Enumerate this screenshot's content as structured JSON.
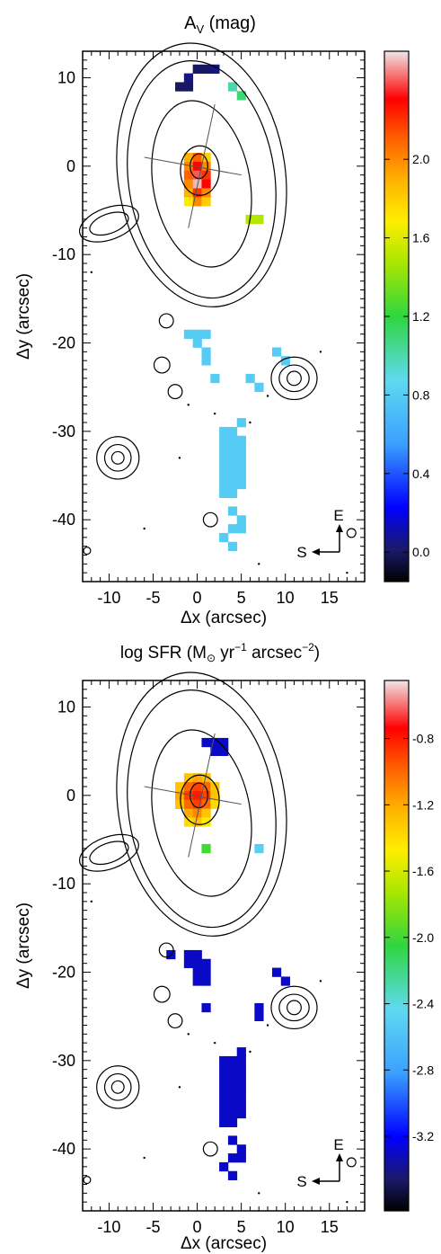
{
  "chart_data": [
    {
      "type": "heatmap",
      "title": "A",
      "title_sub": "V",
      "title_suffix": " (mag)",
      "xlabel": "Δx (arcsec)",
      "ylabel": "Δy (arcsec)",
      "xlim": [
        -13,
        19
      ],
      "ylim": [
        -47,
        13
      ],
      "xticks": [
        -10,
        -5,
        0,
        5,
        10,
        15
      ],
      "yticks": [
        10,
        0,
        -10,
        -20,
        -30,
        -40
      ],
      "colorbar": {
        "range": [
          -0.15,
          2.55
        ],
        "ticks": [
          "2.0",
          "1.6",
          "1.2",
          "0.8",
          "0.4",
          "0.0"
        ],
        "tick_values": [
          2.0,
          1.6,
          1.2,
          0.8,
          0.4,
          0.0
        ]
      },
      "compass": {
        "north_label": "E",
        "west_label": "S"
      },
      "pixels": [
        {
          "x": 0,
          "y": 11,
          "v": 0.0
        },
        {
          "x": 1,
          "y": 11,
          "v": 0.0
        },
        {
          "x": 2,
          "y": 11,
          "v": 0.05
        },
        {
          "x": -1,
          "y": 10,
          "v": 0.05
        },
        {
          "x": -2,
          "y": 9,
          "v": 0.0
        },
        {
          "x": -1,
          "y": 9,
          "v": 0.0
        },
        {
          "x": 4,
          "y": 9,
          "v": 1.0
        },
        {
          "x": 5,
          "y": 8,
          "v": 1.1
        },
        {
          "x": -1,
          "y": 1,
          "v": 1.9
        },
        {
          "x": 0,
          "y": 1,
          "v": 2.1
        },
        {
          "x": 1,
          "y": 1,
          "v": 1.8
        },
        {
          "x": -1,
          "y": 0,
          "v": 2.0
        },
        {
          "x": 0,
          "y": 0,
          "v": 2.3
        },
        {
          "x": 1,
          "y": 0,
          "v": 2.0
        },
        {
          "x": -1,
          "y": -1,
          "v": 2.1
        },
        {
          "x": 0,
          "y": -1,
          "v": 2.4
        },
        {
          "x": 1,
          "y": -1,
          "v": 2.2
        },
        {
          "x": -1,
          "y": -2,
          "v": 2.0
        },
        {
          "x": 0,
          "y": -2,
          "v": 2.5
        },
        {
          "x": 1,
          "y": -2,
          "v": 2.3
        },
        {
          "x": -1,
          "y": -3,
          "v": 1.9
        },
        {
          "x": 0,
          "y": -3,
          "v": 2.2
        },
        {
          "x": 1,
          "y": -3,
          "v": 2.0
        },
        {
          "x": -1,
          "y": -4,
          "v": 1.7
        },
        {
          "x": 0,
          "y": -4,
          "v": 2.0
        },
        {
          "x": 1,
          "y": -4,
          "v": 1.8
        },
        {
          "x": 6,
          "y": -6,
          "v": 1.5
        },
        {
          "x": 7,
          "y": -6,
          "v": 1.5
        },
        {
          "x": -1,
          "y": -19,
          "v": 0.8
        },
        {
          "x": 0,
          "y": -19,
          "v": 0.8
        },
        {
          "x": 1,
          "y": -19,
          "v": 0.8
        },
        {
          "x": 0,
          "y": -20,
          "v": 0.8
        },
        {
          "x": 1,
          "y": -21,
          "v": 0.8
        },
        {
          "x": 1,
          "y": -22,
          "v": 0.8
        },
        {
          "x": 2,
          "y": -24,
          "v": 0.8
        },
        {
          "x": 6,
          "y": -24,
          "v": 0.8
        },
        {
          "x": 7,
          "y": -25,
          "v": 0.8
        },
        {
          "x": 9,
          "y": -21,
          "v": 0.8
        },
        {
          "x": 10,
          "y": -22,
          "v": 0.8
        },
        {
          "x": 3,
          "y": -30,
          "v": 0.8
        },
        {
          "x": 4,
          "y": -30,
          "v": 0.8
        },
        {
          "x": 5,
          "y": -29,
          "v": 0.8
        },
        {
          "x": 3,
          "y": -31,
          "v": 0.8
        },
        {
          "x": 4,
          "y": -31,
          "v": 0.8
        },
        {
          "x": 5,
          "y": -31,
          "v": 0.8
        },
        {
          "x": 3,
          "y": -32,
          "v": 0.8
        },
        {
          "x": 4,
          "y": -32,
          "v": 0.8
        },
        {
          "x": 5,
          "y": -32,
          "v": 0.8
        },
        {
          "x": 3,
          "y": -33,
          "v": 0.8
        },
        {
          "x": 4,
          "y": -33,
          "v": 0.8
        },
        {
          "x": 5,
          "y": -33,
          "v": 0.8
        },
        {
          "x": 3,
          "y": -34,
          "v": 0.8
        },
        {
          "x": 4,
          "y": -34,
          "v": 0.8
        },
        {
          "x": 5,
          "y": -34,
          "v": 0.8
        },
        {
          "x": 3,
          "y": -35,
          "v": 0.8
        },
        {
          "x": 4,
          "y": -35,
          "v": 0.8
        },
        {
          "x": 5,
          "y": -35,
          "v": 0.8
        },
        {
          "x": 3,
          "y": -36,
          "v": 0.8
        },
        {
          "x": 4,
          "y": -36,
          "v": 0.8
        },
        {
          "x": 5,
          "y": -36,
          "v": 0.8
        },
        {
          "x": 3,
          "y": -37,
          "v": 0.8
        },
        {
          "x": 4,
          "y": -37,
          "v": 0.8
        },
        {
          "x": 4,
          "y": -39,
          "v": 0.8
        },
        {
          "x": 5,
          "y": -40,
          "v": 0.8
        },
        {
          "x": 4,
          "y": -41,
          "v": 0.8
        },
        {
          "x": 5,
          "y": -41,
          "v": 0.8
        },
        {
          "x": 3,
          "y": -42,
          "v": 0.8
        },
        {
          "x": 4,
          "y": -43,
          "v": 0.8
        }
      ]
    },
    {
      "type": "heatmap",
      "title": "log SFR (M",
      "title_sym": "⊙",
      "title_mid": " yr",
      "title_sup1": "−1",
      "title_mid2": " arcsec",
      "title_sup2": "−2",
      "title_end": ")",
      "xlabel": "Δx (arcsec)",
      "ylabel": "Δy (arcsec)",
      "xlim": [
        -13,
        19
      ],
      "ylim": [
        -47,
        13
      ],
      "xticks": [
        -10,
        -5,
        0,
        5,
        10,
        15
      ],
      "yticks": [
        10,
        0,
        -10,
        -20,
        -30,
        -40
      ],
      "colorbar": {
        "range": [
          -3.65,
          -0.45
        ],
        "ticks": [
          "-0.8",
          "-1.2",
          "-1.6",
          "-2.0",
          "-2.4",
          "-2.8",
          "-3.2"
        ],
        "tick_values": [
          -0.8,
          -1.2,
          -1.6,
          -2.0,
          -2.4,
          -2.8,
          -3.2
        ]
      },
      "compass": {
        "north_label": "E",
        "west_label": "S"
      },
      "pixels": [
        {
          "x": 1,
          "y": 6,
          "v": -3.3
        },
        {
          "x": 2,
          "y": 6,
          "v": -3.3
        },
        {
          "x": 3,
          "y": 6,
          "v": -3.3
        },
        {
          "x": 2,
          "y": 5,
          "v": -3.3
        },
        {
          "x": 3,
          "y": 5,
          "v": -3.3
        },
        {
          "x": -1,
          "y": 2,
          "v": -1.3
        },
        {
          "x": 0,
          "y": 2,
          "v": -1.2
        },
        {
          "x": 1,
          "y": 2,
          "v": -1.3
        },
        {
          "x": -2,
          "y": 1,
          "v": -1.3
        },
        {
          "x": -1,
          "y": 1,
          "v": -1.0
        },
        {
          "x": 0,
          "y": 1,
          "v": -0.9
        },
        {
          "x": 1,
          "y": 1,
          "v": -1.0
        },
        {
          "x": 2,
          "y": 1,
          "v": -1.3
        },
        {
          "x": -2,
          "y": 0,
          "v": -1.2
        },
        {
          "x": -1,
          "y": 0,
          "v": -0.9
        },
        {
          "x": 0,
          "y": 0,
          "v": -0.8
        },
        {
          "x": 1,
          "y": 0,
          "v": -0.9
        },
        {
          "x": 2,
          "y": 0,
          "v": -1.3
        },
        {
          "x": -2,
          "y": -1,
          "v": -1.3
        },
        {
          "x": -1,
          "y": -1,
          "v": -1.0
        },
        {
          "x": 0,
          "y": -1,
          "v": -0.9
        },
        {
          "x": 1,
          "y": -1,
          "v": -1.0
        },
        {
          "x": 2,
          "y": -1,
          "v": -1.4
        },
        {
          "x": -1,
          "y": -2,
          "v": -1.2
        },
        {
          "x": 0,
          "y": -2,
          "v": -1.1
        },
        {
          "x": 1,
          "y": -2,
          "v": -1.3
        },
        {
          "x": -1,
          "y": -3,
          "v": -1.4
        },
        {
          "x": 0,
          "y": -3,
          "v": -1.3
        },
        {
          "x": 1,
          "y": -3,
          "v": -1.5
        },
        {
          "x": 1,
          "y": -6,
          "v": -2.0
        },
        {
          "x": 7,
          "y": -6,
          "v": -2.5
        },
        {
          "x": -3,
          "y": -18,
          "v": -3.3
        },
        {
          "x": -1,
          "y": -18,
          "v": -3.3
        },
        {
          "x": 0,
          "y": -18,
          "v": -3.3
        },
        {
          "x": -1,
          "y": -19,
          "v": -3.3
        },
        {
          "x": 0,
          "y": -19,
          "v": -3.3
        },
        {
          "x": 1,
          "y": -19,
          "v": -3.3
        },
        {
          "x": 0,
          "y": -20,
          "v": -3.3
        },
        {
          "x": 1,
          "y": -20,
          "v": -3.3
        },
        {
          "x": 0,
          "y": -21,
          "v": -3.3
        },
        {
          "x": 1,
          "y": -21,
          "v": -3.3
        },
        {
          "x": 1,
          "y": -24,
          "v": -3.3
        },
        {
          "x": 7,
          "y": -24,
          "v": -3.3
        },
        {
          "x": 7,
          "y": -25,
          "v": -3.3
        },
        {
          "x": 9,
          "y": -20,
          "v": -3.3
        },
        {
          "x": 10,
          "y": -21,
          "v": -3.3
        },
        {
          "x": 5,
          "y": -29,
          "v": -3.3
        },
        {
          "x": 3,
          "y": -30,
          "v": -3.3
        },
        {
          "x": 4,
          "y": -30,
          "v": -3.3
        },
        {
          "x": 5,
          "y": -30,
          "v": -3.3
        },
        {
          "x": 3,
          "y": -31,
          "v": -3.3
        },
        {
          "x": 4,
          "y": -31,
          "v": -3.3
        },
        {
          "x": 5,
          "y": -31,
          "v": -3.3
        },
        {
          "x": 3,
          "y": -32,
          "v": -3.3
        },
        {
          "x": 4,
          "y": -32,
          "v": -3.3
        },
        {
          "x": 5,
          "y": -32,
          "v": -3.3
        },
        {
          "x": 3,
          "y": -33,
          "v": -3.3
        },
        {
          "x": 4,
          "y": -33,
          "v": -3.3
        },
        {
          "x": 5,
          "y": -33,
          "v": -3.3
        },
        {
          "x": 3,
          "y": -34,
          "v": -3.3
        },
        {
          "x": 4,
          "y": -34,
          "v": -3.3
        },
        {
          "x": 5,
          "y": -34,
          "v": -3.3
        },
        {
          "x": 3,
          "y": -35,
          "v": -3.3
        },
        {
          "x": 4,
          "y": -35,
          "v": -3.3
        },
        {
          "x": 5,
          "y": -35,
          "v": -3.3
        },
        {
          "x": 3,
          "y": -36,
          "v": -3.3
        },
        {
          "x": 4,
          "y": -36,
          "v": -3.3
        },
        {
          "x": 5,
          "y": -36,
          "v": -3.3
        },
        {
          "x": 3,
          "y": -37,
          "v": -3.3
        },
        {
          "x": 4,
          "y": -37,
          "v": -3.3
        },
        {
          "x": 4,
          "y": -39,
          "v": -3.3
        },
        {
          "x": 5,
          "y": -40,
          "v": -3.3
        },
        {
          "x": 4,
          "y": -41,
          "v": -3.3
        },
        {
          "x": 5,
          "y": -41,
          "v": -3.3
        },
        {
          "x": 3,
          "y": -42,
          "v": -3.3
        },
        {
          "x": 4,
          "y": -43,
          "v": -3.3
        }
      ]
    }
  ]
}
